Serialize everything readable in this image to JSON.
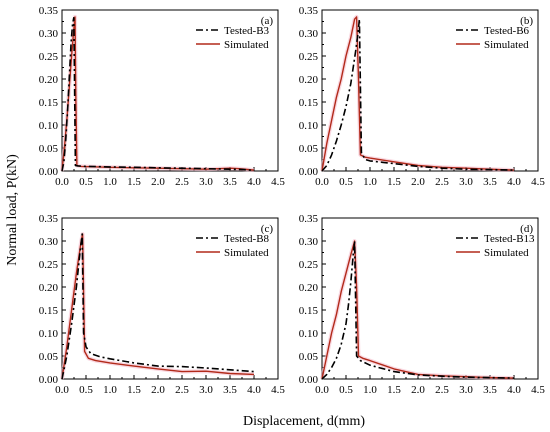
{
  "figure": {
    "ylabel": "Normal load, P(kN)",
    "xlabel": "Displacement, d(mm)"
  },
  "chart_data": [
    {
      "type": "line",
      "panel": "(a)",
      "xlim": [
        0,
        4.5
      ],
      "ylim": [
        0,
        0.35
      ],
      "xticks": [
        "0.0",
        "0.5",
        "1.0",
        "1.5",
        "2.0",
        "2.5",
        "3.0",
        "3.5",
        "4.0",
        "4.5"
      ],
      "yticks": [
        "0.00",
        "0.05",
        "0.10",
        "0.15",
        "0.20",
        "0.25",
        "0.30",
        "0.35"
      ],
      "legend_position": "top-right",
      "grid": false,
      "series": [
        {
          "name": "Tested-B3",
          "style": "dashdot",
          "color": "#000000",
          "x": [
            0,
            0.04,
            0.08,
            0.12,
            0.16,
            0.19,
            0.22,
            0.245,
            0.26,
            0.28,
            0.33,
            0.5,
            1.0,
            1.5,
            2.0,
            2.5,
            3.0,
            3.5,
            3.8,
            4.0
          ],
          "y": [
            0,
            0.02,
            0.07,
            0.14,
            0.22,
            0.28,
            0.32,
            0.333,
            0.2,
            0.012,
            0.011,
            0.01,
            0.009,
            0.008,
            0.007,
            0.006,
            0.005,
            0.004,
            0.003,
            0.001
          ]
        },
        {
          "name": "Simulated",
          "style": "solid",
          "color": "#b22a1a",
          "x": [
            0,
            0.05,
            0.1,
            0.15,
            0.2,
            0.24,
            0.27,
            0.29,
            0.31,
            0.4,
            1.0,
            1.5,
            2.0,
            2.5,
            3.0,
            3.5,
            3.7,
            4.0
          ],
          "y": [
            0,
            0.05,
            0.11,
            0.18,
            0.25,
            0.3,
            0.335,
            0.15,
            0.012,
            0.01,
            0.008,
            0.007,
            0.006,
            0.005,
            0.004,
            0.006,
            0.005,
            0.002
          ]
        }
      ]
    },
    {
      "type": "line",
      "panel": "(b)",
      "xlim": [
        0,
        4.5
      ],
      "ylim": [
        0,
        0.35
      ],
      "xticks": [
        "0.0",
        "0.5",
        "1.0",
        "1.5",
        "2.0",
        "2.5",
        "3.0",
        "3.5",
        "4.0",
        "4.5"
      ],
      "yticks": [
        "0.00",
        "0.05",
        "0.10",
        "0.15",
        "0.20",
        "0.25",
        "0.30",
        "0.35"
      ],
      "legend_position": "top-right",
      "grid": false,
      "series": [
        {
          "name": "Tested-B6",
          "style": "dashdot",
          "color": "#000000",
          "x": [
            0,
            0.1,
            0.2,
            0.3,
            0.4,
            0.5,
            0.6,
            0.7,
            0.75,
            0.78,
            0.82,
            0.9,
            1.0,
            1.5,
            2.0,
            2.5,
            3.0,
            3.5,
            4.0
          ],
          "y": [
            0,
            0.012,
            0.035,
            0.065,
            0.1,
            0.14,
            0.19,
            0.26,
            0.3,
            0.33,
            0.04,
            0.025,
            0.022,
            0.016,
            0.01,
            0.006,
            0.004,
            0.003,
            0.002
          ]
        },
        {
          "name": "Simulated",
          "style": "solid",
          "color": "#b22a1a",
          "x": [
            0,
            0.1,
            0.2,
            0.3,
            0.4,
            0.5,
            0.6,
            0.68,
            0.72,
            0.76,
            0.8,
            0.9,
            1.0,
            1.5,
            2.0,
            2.5,
            3.0,
            3.5,
            4.0
          ],
          "y": [
            0,
            0.06,
            0.11,
            0.16,
            0.2,
            0.25,
            0.29,
            0.33,
            0.335,
            0.2,
            0.035,
            0.03,
            0.028,
            0.02,
            0.012,
            0.008,
            0.006,
            0.004,
            0.002
          ]
        }
      ]
    },
    {
      "type": "line",
      "panel": "(c)",
      "xlim": [
        0,
        4.5
      ],
      "ylim": [
        0,
        0.35
      ],
      "xticks": [
        "0.0",
        "0.5",
        "1.0",
        "1.5",
        "2.0",
        "2.5",
        "3.0",
        "3.5",
        "4.0",
        "4.5"
      ],
      "yticks": [
        "0.00",
        "0.05",
        "0.10",
        "0.15",
        "0.20",
        "0.25",
        "0.30",
        "0.35"
      ],
      "legend_position": "top-right",
      "grid": false,
      "series": [
        {
          "name": "Tested-B8",
          "style": "dashdot",
          "color": "#000000",
          "x": [
            0,
            0.1,
            0.2,
            0.3,
            0.38,
            0.42,
            0.45,
            0.5,
            0.6,
            0.8,
            1.0,
            1.5,
            2.0,
            2.5,
            3.0,
            3.5,
            4.0
          ],
          "y": [
            0,
            0.05,
            0.12,
            0.2,
            0.28,
            0.315,
            0.1,
            0.07,
            0.055,
            0.048,
            0.044,
            0.035,
            0.028,
            0.027,
            0.024,
            0.02,
            0.016
          ]
        },
        {
          "name": "Simulated",
          "style": "solid",
          "color": "#b22a1a",
          "x": [
            0,
            0.1,
            0.2,
            0.3,
            0.4,
            0.43,
            0.47,
            0.55,
            0.7,
            1.0,
            1.5,
            2.0,
            2.5,
            3.0,
            3.5,
            4.0
          ],
          "y": [
            0,
            0.07,
            0.15,
            0.23,
            0.3,
            0.315,
            0.06,
            0.045,
            0.04,
            0.035,
            0.028,
            0.022,
            0.016,
            0.017,
            0.012,
            0.01
          ]
        }
      ]
    },
    {
      "type": "line",
      "panel": "(d)",
      "xlim": [
        0,
        4.5
      ],
      "ylim": [
        0,
        0.35
      ],
      "xticks": [
        "0.0",
        "0.5",
        "1.0",
        "1.5",
        "2.0",
        "2.5",
        "3.0",
        "3.5",
        "4.0",
        "4.5"
      ],
      "yticks": [
        "0.00",
        "0.05",
        "0.10",
        "0.15",
        "0.20",
        "0.25",
        "0.30",
        "0.35"
      ],
      "legend_position": "top-right",
      "grid": false,
      "series": [
        {
          "name": "Tested-B13",
          "style": "dashdot",
          "color": "#000000",
          "x": [
            0,
            0.1,
            0.2,
            0.3,
            0.4,
            0.5,
            0.55,
            0.6,
            0.65,
            0.68,
            0.72,
            0.8,
            1.0,
            1.5,
            2.0,
            2.5,
            3.0,
            3.5,
            4.0
          ],
          "y": [
            0,
            0.01,
            0.025,
            0.045,
            0.075,
            0.12,
            0.16,
            0.21,
            0.27,
            0.3,
            0.05,
            0.04,
            0.03,
            0.016,
            0.009,
            0.006,
            0.004,
            0.003,
            0.002
          ]
        },
        {
          "name": "Simulated",
          "style": "solid",
          "color": "#b22a1a",
          "x": [
            0,
            0.1,
            0.2,
            0.3,
            0.4,
            0.5,
            0.6,
            0.68,
            0.72,
            0.76,
            0.85,
            1.0,
            1.5,
            2.0,
            2.5,
            3.0,
            3.5,
            4.0
          ],
          "y": [
            0,
            0.05,
            0.1,
            0.14,
            0.19,
            0.23,
            0.27,
            0.3,
            0.2,
            0.05,
            0.045,
            0.04,
            0.022,
            0.01,
            0.007,
            0.005,
            0.003,
            0.002
          ]
        }
      ]
    }
  ]
}
